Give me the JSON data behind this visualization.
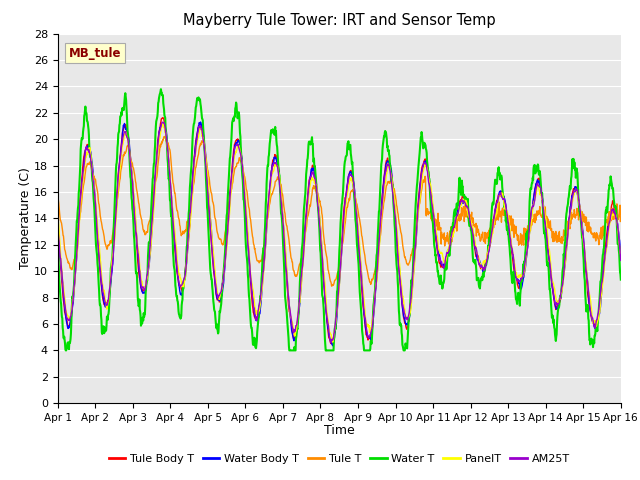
{
  "title": "Mayberry Tule Tower: IRT and Sensor Temp",
  "xlabel": "Time",
  "ylabel": "Temperature (C)",
  "watermark": "MB_tule",
  "ylim": [
    0,
    28
  ],
  "yticks": [
    0,
    2,
    4,
    6,
    8,
    10,
    12,
    14,
    16,
    18,
    20,
    22,
    24,
    26,
    28
  ],
  "xtick_labels": [
    "Apr 1",
    "Apr 2",
    "Apr 3",
    "Apr 4",
    "Apr 5",
    "Apr 6",
    "Apr 7",
    "Apr 8",
    "Apr 9",
    "Apr 10",
    "Apr 11",
    "Apr 12",
    "Apr 13",
    "Apr 14",
    "Apr 15",
    "Apr 16"
  ],
  "series": {
    "Tule Body T": {
      "color": "#FF0000",
      "lw": 1.0
    },
    "Water Body T": {
      "color": "#0000FF",
      "lw": 1.0
    },
    "Tule T": {
      "color": "#FF8C00",
      "lw": 1.0
    },
    "Water T": {
      "color": "#00DD00",
      "lw": 1.5
    },
    "PanelT": {
      "color": "#FFFF00",
      "lw": 1.0
    },
    "AM25T": {
      "color": "#9900CC",
      "lw": 1.0
    }
  },
  "bg_color": "#E8E8E8",
  "fig_bg": "#FFFFFF",
  "grid_color": "#FFFFFF",
  "watermark_facecolor": "#FFFFCC",
  "watermark_edgecolor": "#AAAAAA",
  "watermark_textcolor": "#8B0000"
}
